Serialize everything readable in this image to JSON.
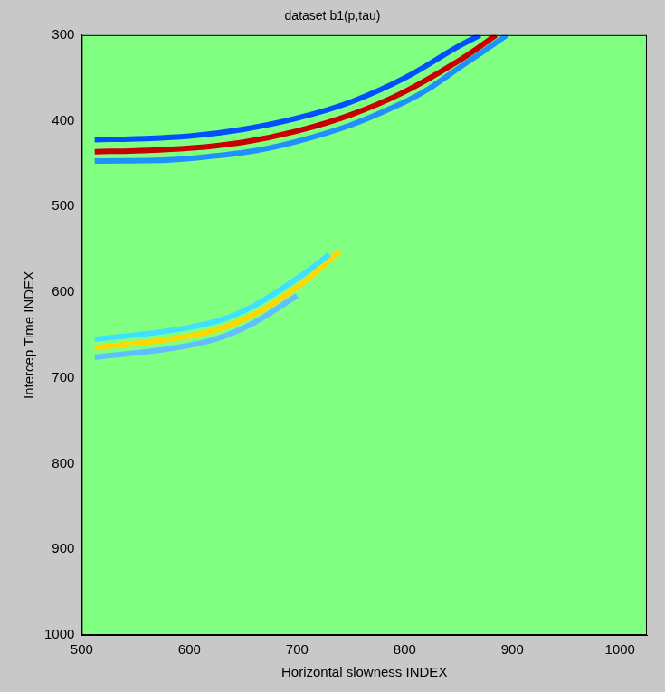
{
  "chart_data": {
    "type": "line",
    "title": "dataset b1(p,tau)",
    "x_label": "Horizontal slowness INDEX",
    "y_label": "Intercep Time INDEX",
    "xlim": [
      500,
      1025
    ],
    "xticks": [
      500,
      600,
      700,
      800,
      900,
      1000
    ],
    "ylim": [
      1000,
      300
    ],
    "yticks": [
      300,
      400,
      500,
      600,
      700,
      800,
      900,
      1000
    ],
    "grid": false,
    "series": [
      {
        "color": "#0050ff",
        "x": [
          512,
          550,
          600,
          650,
          700,
          750,
          800,
          850,
          870
        ],
        "values": [
          422,
          421,
          418,
          410,
          397,
          378,
          350,
          313,
          300
        ]
      },
      {
        "color": "#2090ff",
        "x": [
          512,
          600,
          700,
          800,
          860,
          895
        ],
        "values": [
          447,
          444,
          424,
          378,
          330,
          300
        ]
      },
      {
        "color": "#c80000",
        "x": [
          512,
          550,
          600,
          650,
          700,
          750,
          800,
          850,
          885
        ],
        "values": [
          436,
          435,
          432,
          425,
          412,
          393,
          366,
          330,
          300
        ]
      },
      {
        "color": "#40e0ff",
        "x": [
          512,
          600,
          650,
          700,
          730
        ],
        "values": [
          655,
          641,
          622,
          584,
          556
        ]
      },
      {
        "color": "#60c0ff",
        "x": [
          512,
          600,
          650,
          700
        ],
        "values": [
          676,
          662,
          642,
          604
        ]
      },
      {
        "color": "#ffd800",
        "x": [
          512,
          600,
          650,
          700,
          740
        ],
        "values": [
          665,
          651,
          632,
          594,
          552
        ]
      }
    ]
  }
}
